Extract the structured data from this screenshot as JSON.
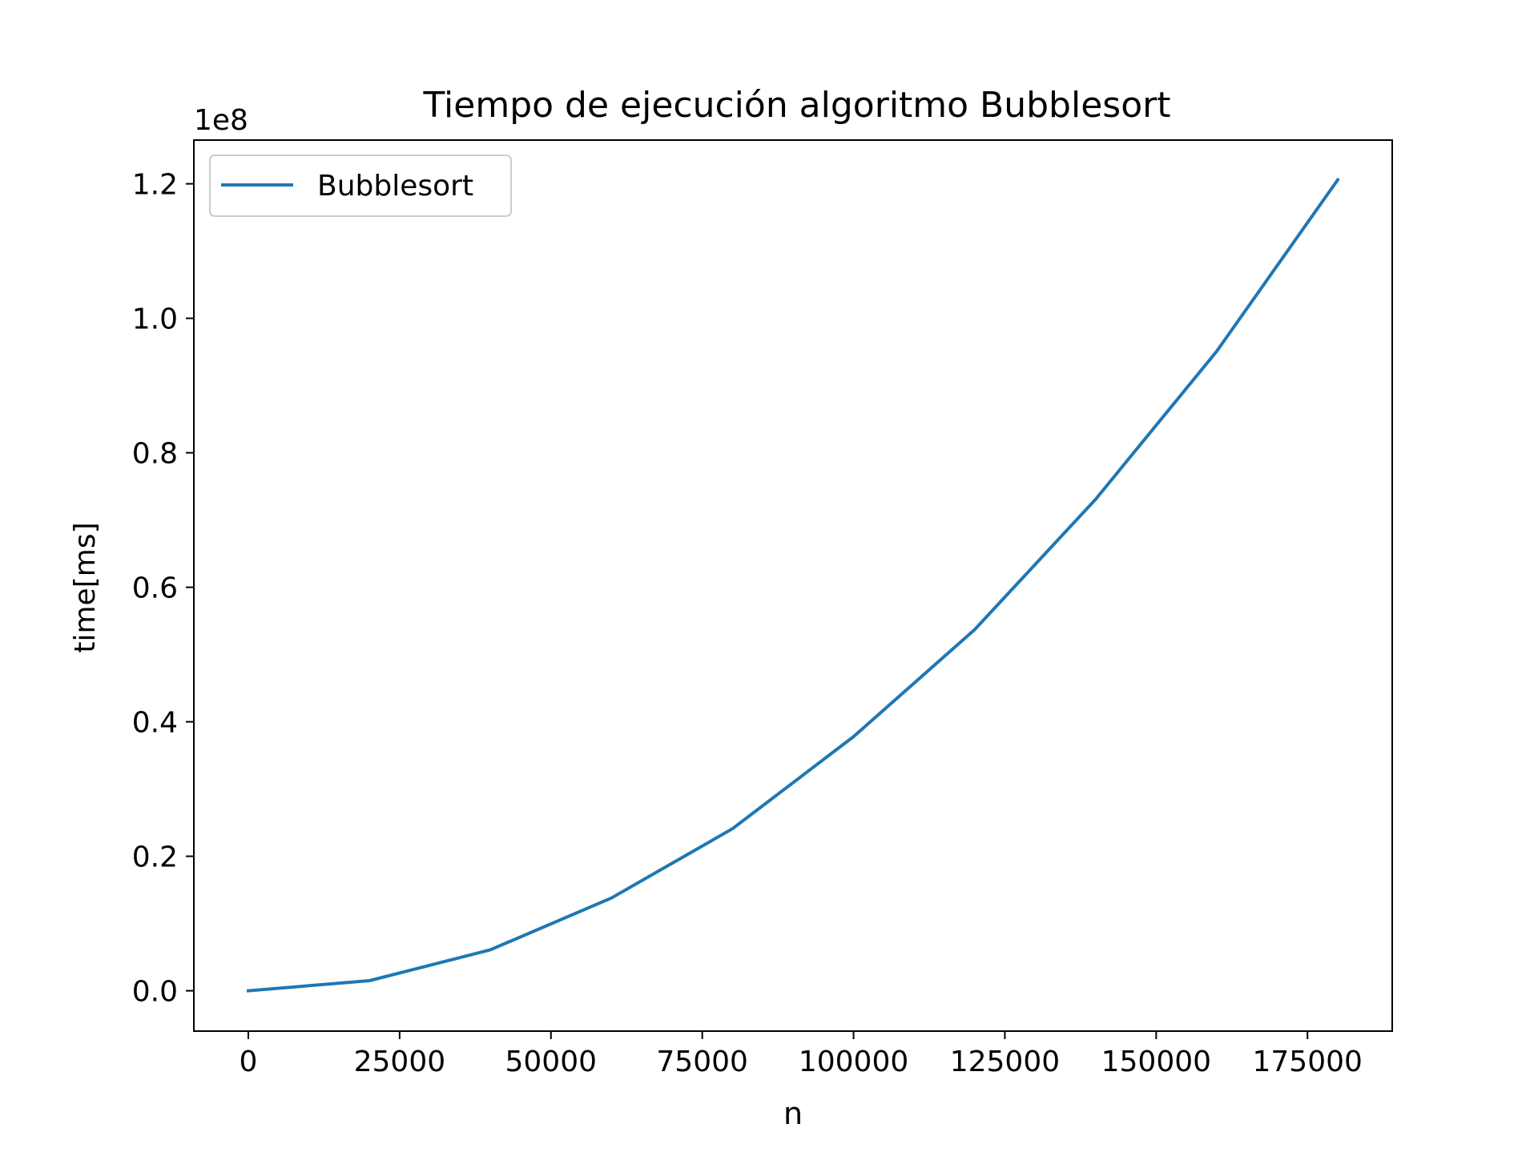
{
  "chart_data": {
    "type": "line",
    "title": "Tiempo de ejecución algoritmo Bubblesort",
    "xlabel": "n",
    "ylabel": "time[ms]",
    "y_offset_label": "1e8",
    "y_multiplier": 100000000,
    "xlim": [
      -9000,
      189000
    ],
    "ylim": [
      -0.06,
      1.265
    ],
    "x_ticks": [
      0,
      25000,
      50000,
      75000,
      100000,
      125000,
      150000,
      175000
    ],
    "x_tick_labels": [
      "0",
      "25000",
      "50000",
      "75000",
      "100000",
      "125000",
      "150000",
      "175000"
    ],
    "y_ticks": [
      0.0,
      0.2,
      0.4,
      0.6,
      0.8,
      1.0,
      1.2
    ],
    "y_tick_labels": [
      "0.0",
      "0.2",
      "0.4",
      "0.6",
      "0.8",
      "1.0",
      "1.2"
    ],
    "grid": false,
    "legend_position": "top-left",
    "series": [
      {
        "name": "Bubblesort",
        "color": "#1f77b4",
        "x": [
          0,
          20000,
          40000,
          60000,
          80000,
          100000,
          120000,
          140000,
          160000,
          180000
        ],
        "y": [
          0.0,
          0.015,
          0.061,
          0.138,
          0.241,
          0.378,
          0.537,
          0.731,
          0.951,
          1.206
        ]
      }
    ]
  }
}
